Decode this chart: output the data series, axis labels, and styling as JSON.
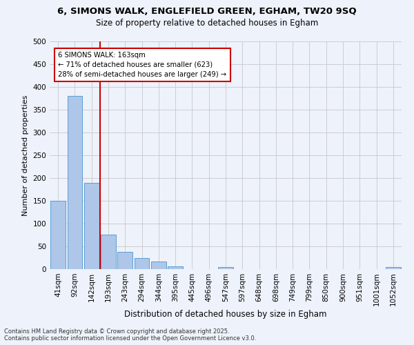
{
  "title_line1": "6, SIMONS WALK, ENGLEFIELD GREEN, EGHAM, TW20 9SQ",
  "title_line2": "Size of property relative to detached houses in Egham",
  "xlabel": "Distribution of detached houses by size in Egham",
  "ylabel": "Number of detached properties",
  "bar_labels": [
    "41sqm",
    "92sqm",
    "142sqm",
    "193sqm",
    "243sqm",
    "294sqm",
    "344sqm",
    "395sqm",
    "445sqm",
    "496sqm",
    "547sqm",
    "597sqm",
    "648sqm",
    "698sqm",
    "749sqm",
    "799sqm",
    "850sqm",
    "900sqm",
    "951sqm",
    "1001sqm",
    "1052sqm"
  ],
  "bar_values": [
    150,
    380,
    190,
    76,
    38,
    25,
    16,
    6,
    0,
    0,
    4,
    0,
    0,
    0,
    0,
    0,
    0,
    0,
    0,
    0,
    5
  ],
  "bar_color": "#aec6e8",
  "bar_edge_color": "#5a9fd4",
  "background_color": "#eef2fb",
  "grid_color": "#c8c8c8",
  "vline_x": 2.5,
  "vline_color": "#cc0000",
  "annotation_text": "6 SIMONS WALK: 163sqm\n← 71% of detached houses are smaller (623)\n28% of semi-detached houses are larger (249) →",
  "annotation_box_color": "#ffffff",
  "annotation_box_edge": "#cc0000",
  "ylim": [
    0,
    500
  ],
  "yticks": [
    0,
    50,
    100,
    150,
    200,
    250,
    300,
    350,
    400,
    450,
    500
  ],
  "footer_line1": "Contains HM Land Registry data © Crown copyright and database right 2025.",
  "footer_line2": "Contains public sector information licensed under the Open Government Licence v3.0."
}
